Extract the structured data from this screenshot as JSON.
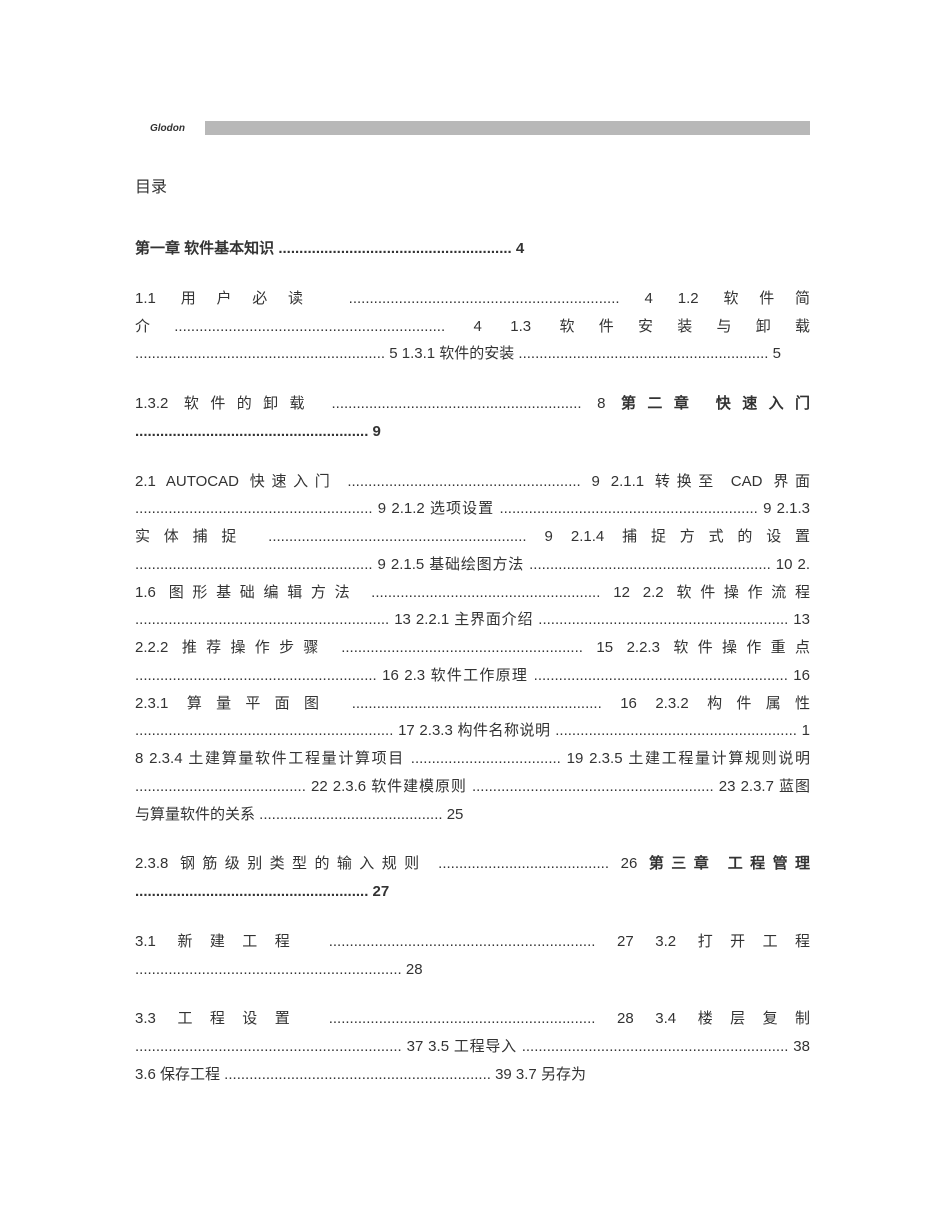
{
  "logo_text": "Glodon",
  "title": "目录",
  "paragraphs": [
    {
      "segments": [
        {
          "text": "第一章 软件基本知识 ........................................................ 4",
          "bold": true
        }
      ]
    },
    {
      "segments": [
        {
          "text": "1.1 用户必读 ................................................................. 4 1.2 软件简介................................................................. 4 1.3 软件安装与卸载 ............................................................ 5 1.3.1 软件的安装 ............................................................ 5",
          "bold": false
        }
      ]
    },
    {
      "segments": [
        {
          "text": "1.3.2 软件的卸载 ............................................................ 8 ",
          "bold": false
        },
        {
          "text": "第二章 快速入门 ........................................................ 9",
          "bold": true
        }
      ]
    },
    {
      "segments": [
        {
          "text": "2.1 AUTOCAD 快速入门 ........................................................ 9 2.1.1 转换至 CAD 界面 ......................................................... 9 2.1.2 选项设置 .............................................................. 9 2.1.3 实体捕捉 .............................................................. 9 2.1.4 捕捉方式的设置 ......................................................... 9 2.1.5 基础绘图方法 .......................................................... 10 2.1.6 图形基础编辑方法 ....................................................... 12 2.2 软件操作流程 ............................................................. 13 2.2.1 主界面介绍 ............................................................ 13 2.2.2 推荐操作步骤 .......................................................... 15 2.2.3 软件操作重点 .......................................................... 16 2.3 软件工作原理 ............................................................. 16 2.3.1 算量平面图 ............................................................ 16 2.3.2 构件属性 .............................................................. 17 2.3.3 构件名称说明 .......................................................... 18 2.3.4 土建算量软件工程量计算项目 .................................... 19 2.3.5 土建工程量计算规则说明 ......................................... 22 2.3.6 软件建模原则 .......................................................... 23 2.3.7 蓝图与算量软件的关系 ............................................ 25",
          "bold": false
        }
      ]
    },
    {
      "segments": [
        {
          "text": "2.3.8 钢筋级别类型的输入规则 ......................................... 26 ",
          "bold": false
        },
        {
          "text": "第三章 工程管理 ........................................................ 27",
          "bold": true
        }
      ]
    },
    {
      "segments": [
        {
          "text": "3.1 新建工程 ................................................................ 27 3.2 打开工程 ................................................................ 28",
          "bold": false
        }
      ]
    },
    {
      "segments": [
        {
          "text": "3.3 工程设置 ................................................................ 28 3.4 楼层复制 ................................................................ 37 3.5 工程导入 ................................................................ 38 3.6 保存工程 ................................................................ 39 3.7 另存为",
          "bold": false
        }
      ]
    }
  ]
}
